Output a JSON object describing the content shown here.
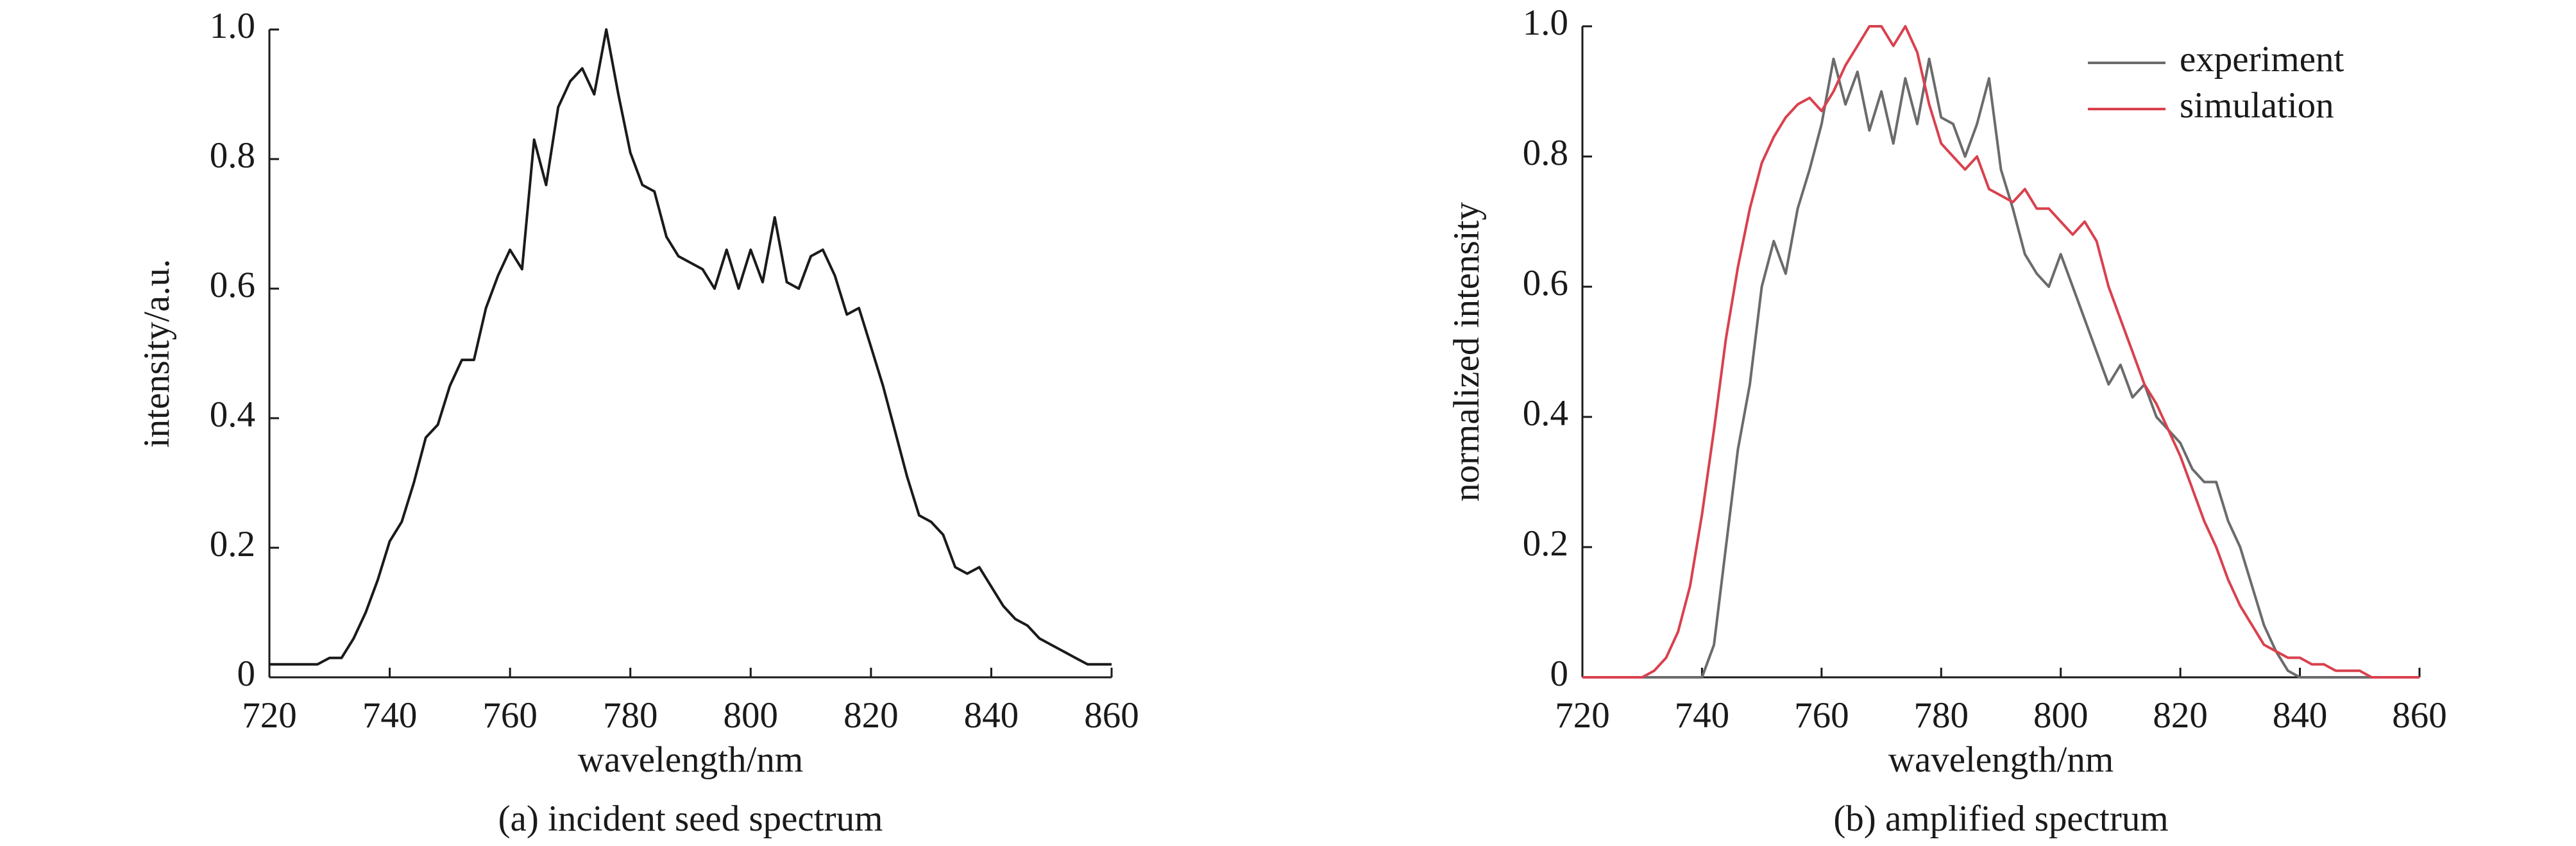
{
  "chart_data": [
    {
      "type": "line",
      "caption": "(a) incident seed spectrum",
      "x_label": "wavelength/nm",
      "y_label": "intensity/a.u.",
      "xlim": [
        720,
        860
      ],
      "xticks": [
        720,
        740,
        760,
        780,
        800,
        820,
        840,
        860
      ],
      "ylim": [
        0,
        1
      ],
      "yticks": [
        0,
        0.2,
        0.4,
        0.6,
        0.8,
        {
          "value": 1,
          "label": "1.0"
        }
      ],
      "x": [
        720,
        722,
        724,
        726,
        728,
        730,
        732,
        734,
        736,
        738,
        740,
        742,
        744,
        746,
        748,
        750,
        752,
        754,
        756,
        758,
        760,
        762,
        764,
        766,
        768,
        770,
        772,
        774,
        776,
        778,
        780,
        782,
        784,
        786,
        788,
        790,
        792,
        794,
        796,
        798,
        800,
        802,
        804,
        806,
        808,
        810,
        812,
        814,
        816,
        818,
        820,
        822,
        824,
        826,
        828,
        830,
        832,
        834,
        836,
        838,
        840,
        842,
        844,
        846,
        848,
        850,
        852,
        854,
        856,
        858,
        860
      ],
      "series": [
        {
          "color": "#1a1a1a",
          "values": [
            0.02,
            0.02,
            0.02,
            0.02,
            0.02,
            0.03,
            0.03,
            0.06,
            0.1,
            0.15,
            0.21,
            0.24,
            0.3,
            0.37,
            0.39,
            0.45,
            0.49,
            0.49,
            0.57,
            0.62,
            0.66,
            0.63,
            0.83,
            0.76,
            0.88,
            0.92,
            0.94,
            0.9,
            1.0,
            0.9,
            0.81,
            0.76,
            0.75,
            0.68,
            0.65,
            0.64,
            0.63,
            0.6,
            0.66,
            0.6,
            0.66,
            0.61,
            0.71,
            0.61,
            0.6,
            0.65,
            0.66,
            0.62,
            0.56,
            0.57,
            0.51,
            0.45,
            0.38,
            0.31,
            0.25,
            0.24,
            0.22,
            0.17,
            0.16,
            0.17,
            0.14,
            0.11,
            0.09,
            0.08,
            0.06,
            0.05,
            0.04,
            0.03,
            0.02,
            0.02,
            0.02
          ]
        }
      ]
    },
    {
      "type": "line",
      "caption": "(b) amplified spectrum",
      "x_label": "wavelength/nm",
      "y_label": "normalized intensity",
      "legend": "upper right",
      "xlim": [
        720,
        860
      ],
      "xticks": [
        720,
        740,
        760,
        780,
        800,
        820,
        840,
        860
      ],
      "ylim": [
        0,
        1
      ],
      "yticks": [
        0,
        0.2,
        0.4,
        0.6,
        0.8,
        {
          "value": 1,
          "label": "1.0"
        }
      ],
      "x": [
        720,
        722,
        724,
        726,
        728,
        730,
        732,
        734,
        736,
        738,
        740,
        742,
        744,
        746,
        748,
        750,
        752,
        754,
        756,
        758,
        760,
        762,
        764,
        766,
        768,
        770,
        772,
        774,
        776,
        778,
        780,
        782,
        784,
        786,
        788,
        790,
        792,
        794,
        796,
        798,
        800,
        802,
        804,
        806,
        808,
        810,
        812,
        814,
        816,
        818,
        820,
        822,
        824,
        826,
        828,
        830,
        832,
        834,
        836,
        838,
        840,
        842,
        844,
        846,
        848,
        850,
        852,
        854,
        856,
        858,
        860
      ],
      "series": [
        {
          "name": "experiment",
          "color": "#6b6b6b",
          "values": [
            0,
            0,
            0,
            0,
            0,
            0,
            0,
            0,
            0,
            0,
            0,
            0.05,
            0.2,
            0.35,
            0.45,
            0.6,
            0.67,
            0.62,
            0.72,
            0.78,
            0.85,
            0.95,
            0.88,
            0.93,
            0.84,
            0.9,
            0.82,
            0.92,
            0.85,
            0.95,
            0.86,
            0.85,
            0.8,
            0.85,
            0.92,
            0.78,
            0.72,
            0.65,
            0.62,
            0.6,
            0.65,
            0.6,
            0.55,
            0.5,
            0.45,
            0.48,
            0.43,
            0.45,
            0.4,
            0.38,
            0.36,
            0.32,
            0.3,
            0.3,
            0.24,
            0.2,
            0.14,
            0.08,
            0.04,
            0.01,
            0,
            0,
            0,
            0,
            0,
            0,
            0,
            0,
            0,
            0,
            0
          ]
        },
        {
          "name": "simulation",
          "color": "#d9414e",
          "values": [
            0,
            0,
            0,
            0,
            0,
            0,
            0.01,
            0.03,
            0.07,
            0.14,
            0.25,
            0.38,
            0.52,
            0.63,
            0.72,
            0.79,
            0.83,
            0.86,
            0.88,
            0.89,
            0.87,
            0.9,
            0.94,
            0.97,
            1.0,
            1.0,
            0.97,
            1.0,
            0.96,
            0.88,
            0.82,
            0.8,
            0.78,
            0.8,
            0.75,
            0.74,
            0.73,
            0.75,
            0.72,
            0.72,
            0.7,
            0.68,
            0.7,
            0.67,
            0.6,
            0.55,
            0.5,
            0.45,
            0.42,
            0.38,
            0.34,
            0.29,
            0.24,
            0.2,
            0.15,
            0.11,
            0.08,
            0.05,
            0.04,
            0.03,
            0.03,
            0.02,
            0.02,
            0.01,
            0.01,
            0.01,
            0,
            0,
            0,
            0,
            0
          ]
        }
      ]
    }
  ]
}
